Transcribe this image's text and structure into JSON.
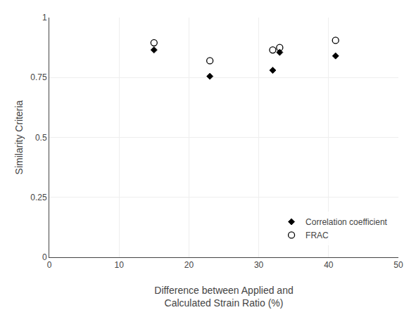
{
  "chart_data": {
    "type": "scatter",
    "xlabel": "Difference between Applied and\nCalculated Strain Ratio (%)",
    "ylabel": "Similarity Criteria",
    "x": [
      15,
      23,
      32,
      33,
      41
    ],
    "series": [
      {
        "name": "Correlation coefficient",
        "color": "black",
        "marker": "diamond",
        "values": [
          0.865,
          0.755,
          0.78,
          0.855,
          0.84
        ]
      },
      {
        "name": "FRAC",
        "color": "black",
        "marker": "circle-open",
        "values": [
          0.895,
          0.82,
          0.865,
          0.875,
          0.905
        ]
      }
    ],
    "xlim": [
      0,
      50
    ],
    "ylim": [
      0,
      1
    ],
    "xticks": [
      0,
      10,
      20,
      30,
      40,
      50
    ],
    "yticks": [
      0,
      0.25,
      0.5,
      0.75,
      1
    ],
    "grid": true,
    "legend": "lower right"
  }
}
